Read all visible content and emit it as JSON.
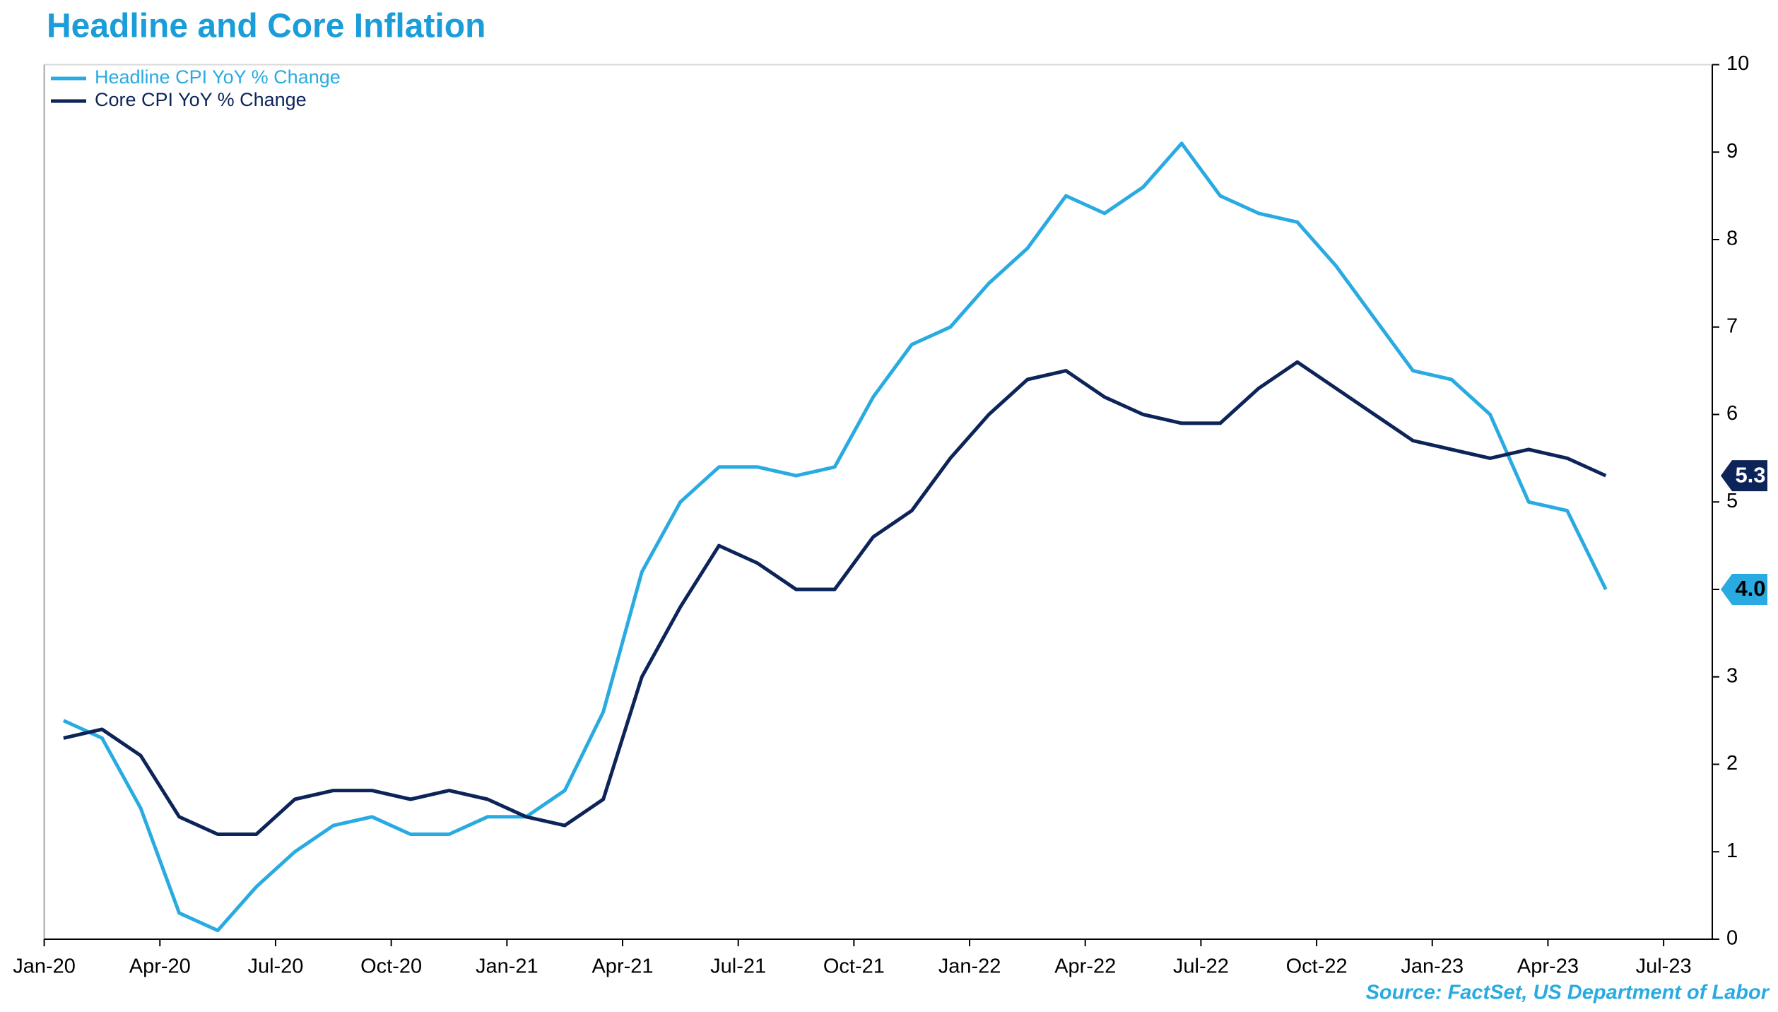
{
  "chart_data": {
    "type": "line",
    "title": "Headline and Core Inflation",
    "source": "Source: FactSet, US Department of Labor",
    "categories": [
      "Jan-20",
      null,
      null,
      "Apr-20",
      null,
      null,
      "Jul-20",
      null,
      null,
      "Oct-20",
      null,
      null,
      "Jan-21",
      null,
      null,
      "Apr-21",
      null,
      null,
      "Jul-21",
      null,
      null,
      "Oct-21",
      null,
      null,
      "Jan-22",
      null,
      null,
      "Apr-22",
      null,
      null,
      "Jul-22",
      null,
      null,
      "Oct-22",
      null,
      null,
      "Jan-23",
      null,
      null,
      "Apr-23",
      null,
      null,
      "Jul-23"
    ],
    "series": [
      {
        "name": "Headline CPI YoY % Change",
        "color": "#29abe2",
        "end_label": "4.0",
        "values": [
          2.5,
          2.3,
          1.5,
          0.3,
          0.1,
          0.6,
          1.0,
          1.3,
          1.4,
          1.2,
          1.2,
          1.4,
          1.4,
          1.7,
          2.6,
          4.2,
          5.0,
          5.4,
          5.4,
          5.3,
          5.4,
          6.2,
          6.8,
          7.0,
          7.5,
          7.9,
          8.5,
          8.3,
          8.6,
          9.1,
          8.5,
          8.3,
          8.2,
          7.7,
          7.1,
          6.5,
          6.4,
          6.0,
          5.0,
          4.9,
          4.0,
          null,
          null
        ]
      },
      {
        "name": "Core CPI YoY % Change",
        "color": "#0d2459",
        "end_label": "5.3",
        "values": [
          2.3,
          2.4,
          2.1,
          1.4,
          1.2,
          1.2,
          1.6,
          1.7,
          1.7,
          1.6,
          1.7,
          1.6,
          1.4,
          1.3,
          1.6,
          3.0,
          3.8,
          4.5,
          4.3,
          4.0,
          4.0,
          4.6,
          4.9,
          5.5,
          6.0,
          6.4,
          6.5,
          6.2,
          6.0,
          5.9,
          5.9,
          6.3,
          6.6,
          6.3,
          6.0,
          5.7,
          5.6,
          5.5,
          5.6,
          5.5,
          5.3,
          null,
          null
        ]
      }
    ],
    "ylim": [
      0,
      10
    ],
    "yticks": [
      0,
      1,
      2,
      3,
      4,
      5,
      6,
      7,
      8,
      9,
      10
    ],
    "legend": "top-left"
  }
}
